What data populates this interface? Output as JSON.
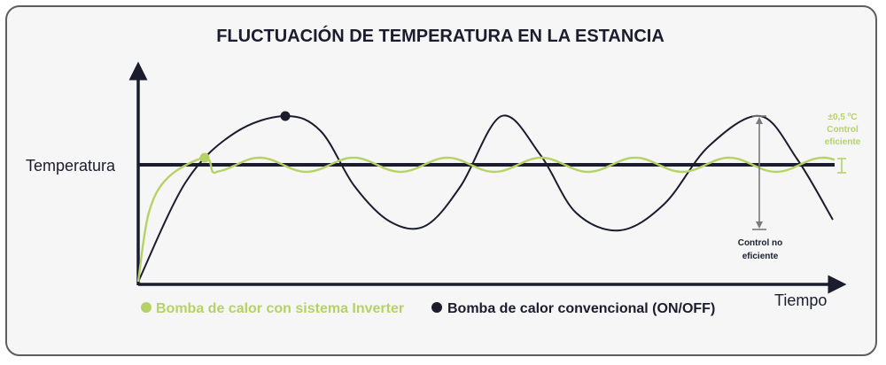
{
  "chart_data": {
    "type": "line",
    "title": "FLUCTUACIÓN DE TEMPERATURA EN LA ESTANCIA",
    "ylabel": "Temperatura",
    "xlabel": "Tiempo",
    "legend_position": "bottom-left",
    "grid": false,
    "reference_line": {
      "label": "Temperatura"
    },
    "series": [
      {
        "name": "Bomba de calor con sistema Inverter",
        "color": "#b6d267",
        "marker_color": "#b6d267"
      },
      {
        "name": "Bomba de calor convencional (ON/OFF)",
        "color": "#1b1d2e",
        "marker_color": "#1b1d2e"
      }
    ],
    "annotations": {
      "efficient": [
        "±0,5 ºC",
        "Control",
        "eficiente"
      ],
      "inefficient": [
        "Control no",
        "eficiente"
      ]
    }
  },
  "colors": {
    "dark": "#1b1d2e",
    "green": "#b6d267",
    "gray": "#7a7a7a",
    "background": "#f6f6f6"
  }
}
